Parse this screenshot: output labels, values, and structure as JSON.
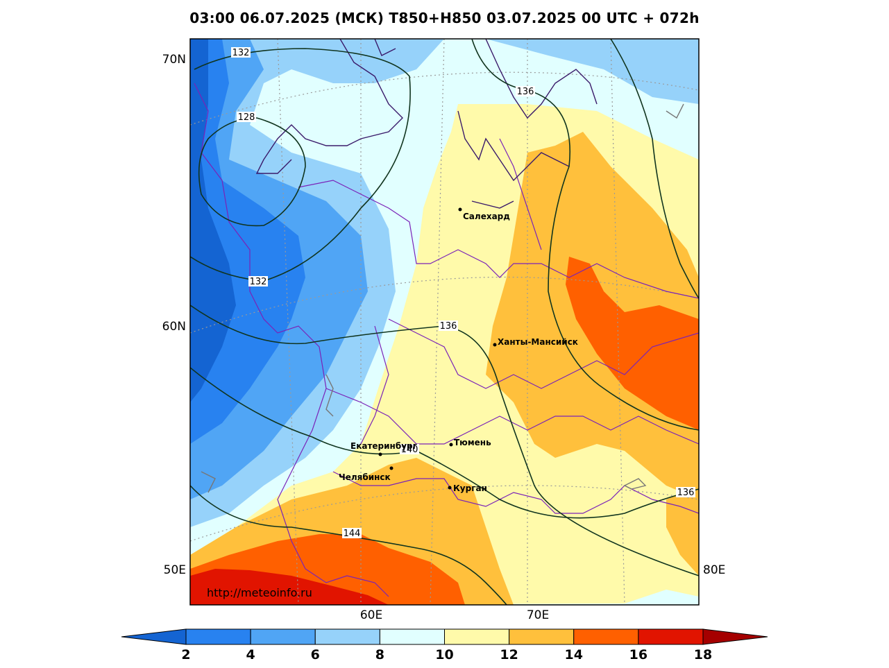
{
  "title": "03:00 06.07.2025 (МСК) T850+H850 03.07.2025 00 UTC + 072h",
  "watermark": "http://meteoinfo.ru",
  "axis_labels": {
    "lat_70": "70N",
    "lat_60": "60N",
    "lat_50": "50E",
    "lon_80": "80E",
    "lon_60": "60E",
    "lon_70": "70E"
  },
  "contour_labels": [
    "132",
    "128",
    "132",
    "136",
    "136",
    "140",
    "144",
    "136"
  ],
  "cities": [
    "Салехард",
    "Ханты-Мансийск",
    "Екатеринбург",
    "Тюмень",
    "Челябинск",
    "Курган"
  ],
  "colorbar": {
    "ticks": [
      "2",
      "4",
      "6",
      "8",
      "10",
      "12",
      "14",
      "16",
      "18"
    ],
    "colors": [
      "#1464d2",
      "#2882f0",
      "#50a5f5",
      "#96d2fa",
      "#e1ffff",
      "#fffaaa",
      "#ffc03c",
      "#ff6000",
      "#e11400",
      "#a50000"
    ]
  },
  "chart_data": {
    "type": "heatmap",
    "title": "03:00 06.07.2025 (МСК) T850+H850 03.07.2025 00 UTC + 072h",
    "color_scale_levels": [
      2,
      4,
      6,
      8,
      10,
      12,
      14,
      16,
      18
    ],
    "height_contours": [
      128,
      132,
      136,
      140,
      144
    ]
  }
}
